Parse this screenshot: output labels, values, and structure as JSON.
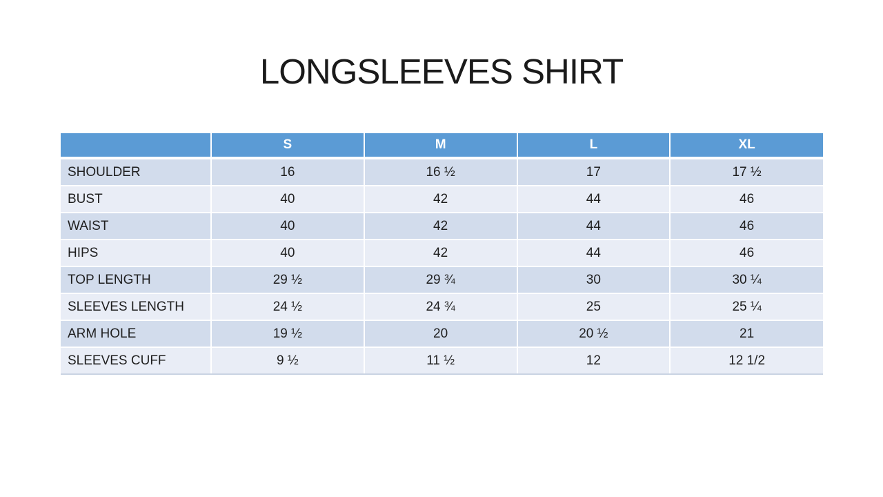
{
  "slide": {
    "title": "LONGSLEEVES SHIRT"
  },
  "table": {
    "corner_label": "",
    "columns": [
      "S",
      "M",
      "L",
      "XL"
    ],
    "rows": [
      {
        "label": "SHOULDER",
        "values": [
          "16",
          "16 ½",
          "17",
          "17 ½"
        ]
      },
      {
        "label": "BUST",
        "values": [
          "40",
          "42",
          "44",
          "46"
        ]
      },
      {
        "label": "WAIST",
        "values": [
          "40",
          "42",
          "44",
          "46"
        ]
      },
      {
        "label": "HIPS",
        "values": [
          "40",
          "42",
          "44",
          "46"
        ]
      },
      {
        "label": "TOP LENGTH",
        "values": [
          "29 ½",
          "29 ¾",
          "30",
          "30 ¼"
        ]
      },
      {
        "label": "SLEEVES LENGTH",
        "values": [
          "24 ½",
          "24 ¾",
          "25",
          "25 ¼"
        ]
      },
      {
        "label": "ARM HOLE",
        "values": [
          "19 ½",
          "20",
          "20 ½",
          "21"
        ]
      },
      {
        "label": "SLEEVES CUFF",
        "values": [
          "9 ½",
          "11 ½",
          "12",
          "12 1/2"
        ]
      }
    ]
  },
  "colors": {
    "header_bg": "#5B9BD5",
    "header_text": "#FFFFFF",
    "row_dark": "#D2DCEC",
    "row_light": "#E9EDF6",
    "body_text": "#1F1F1F",
    "title_text": "#1A1A1A",
    "table_bottom_border": "#C9D3E2"
  }
}
